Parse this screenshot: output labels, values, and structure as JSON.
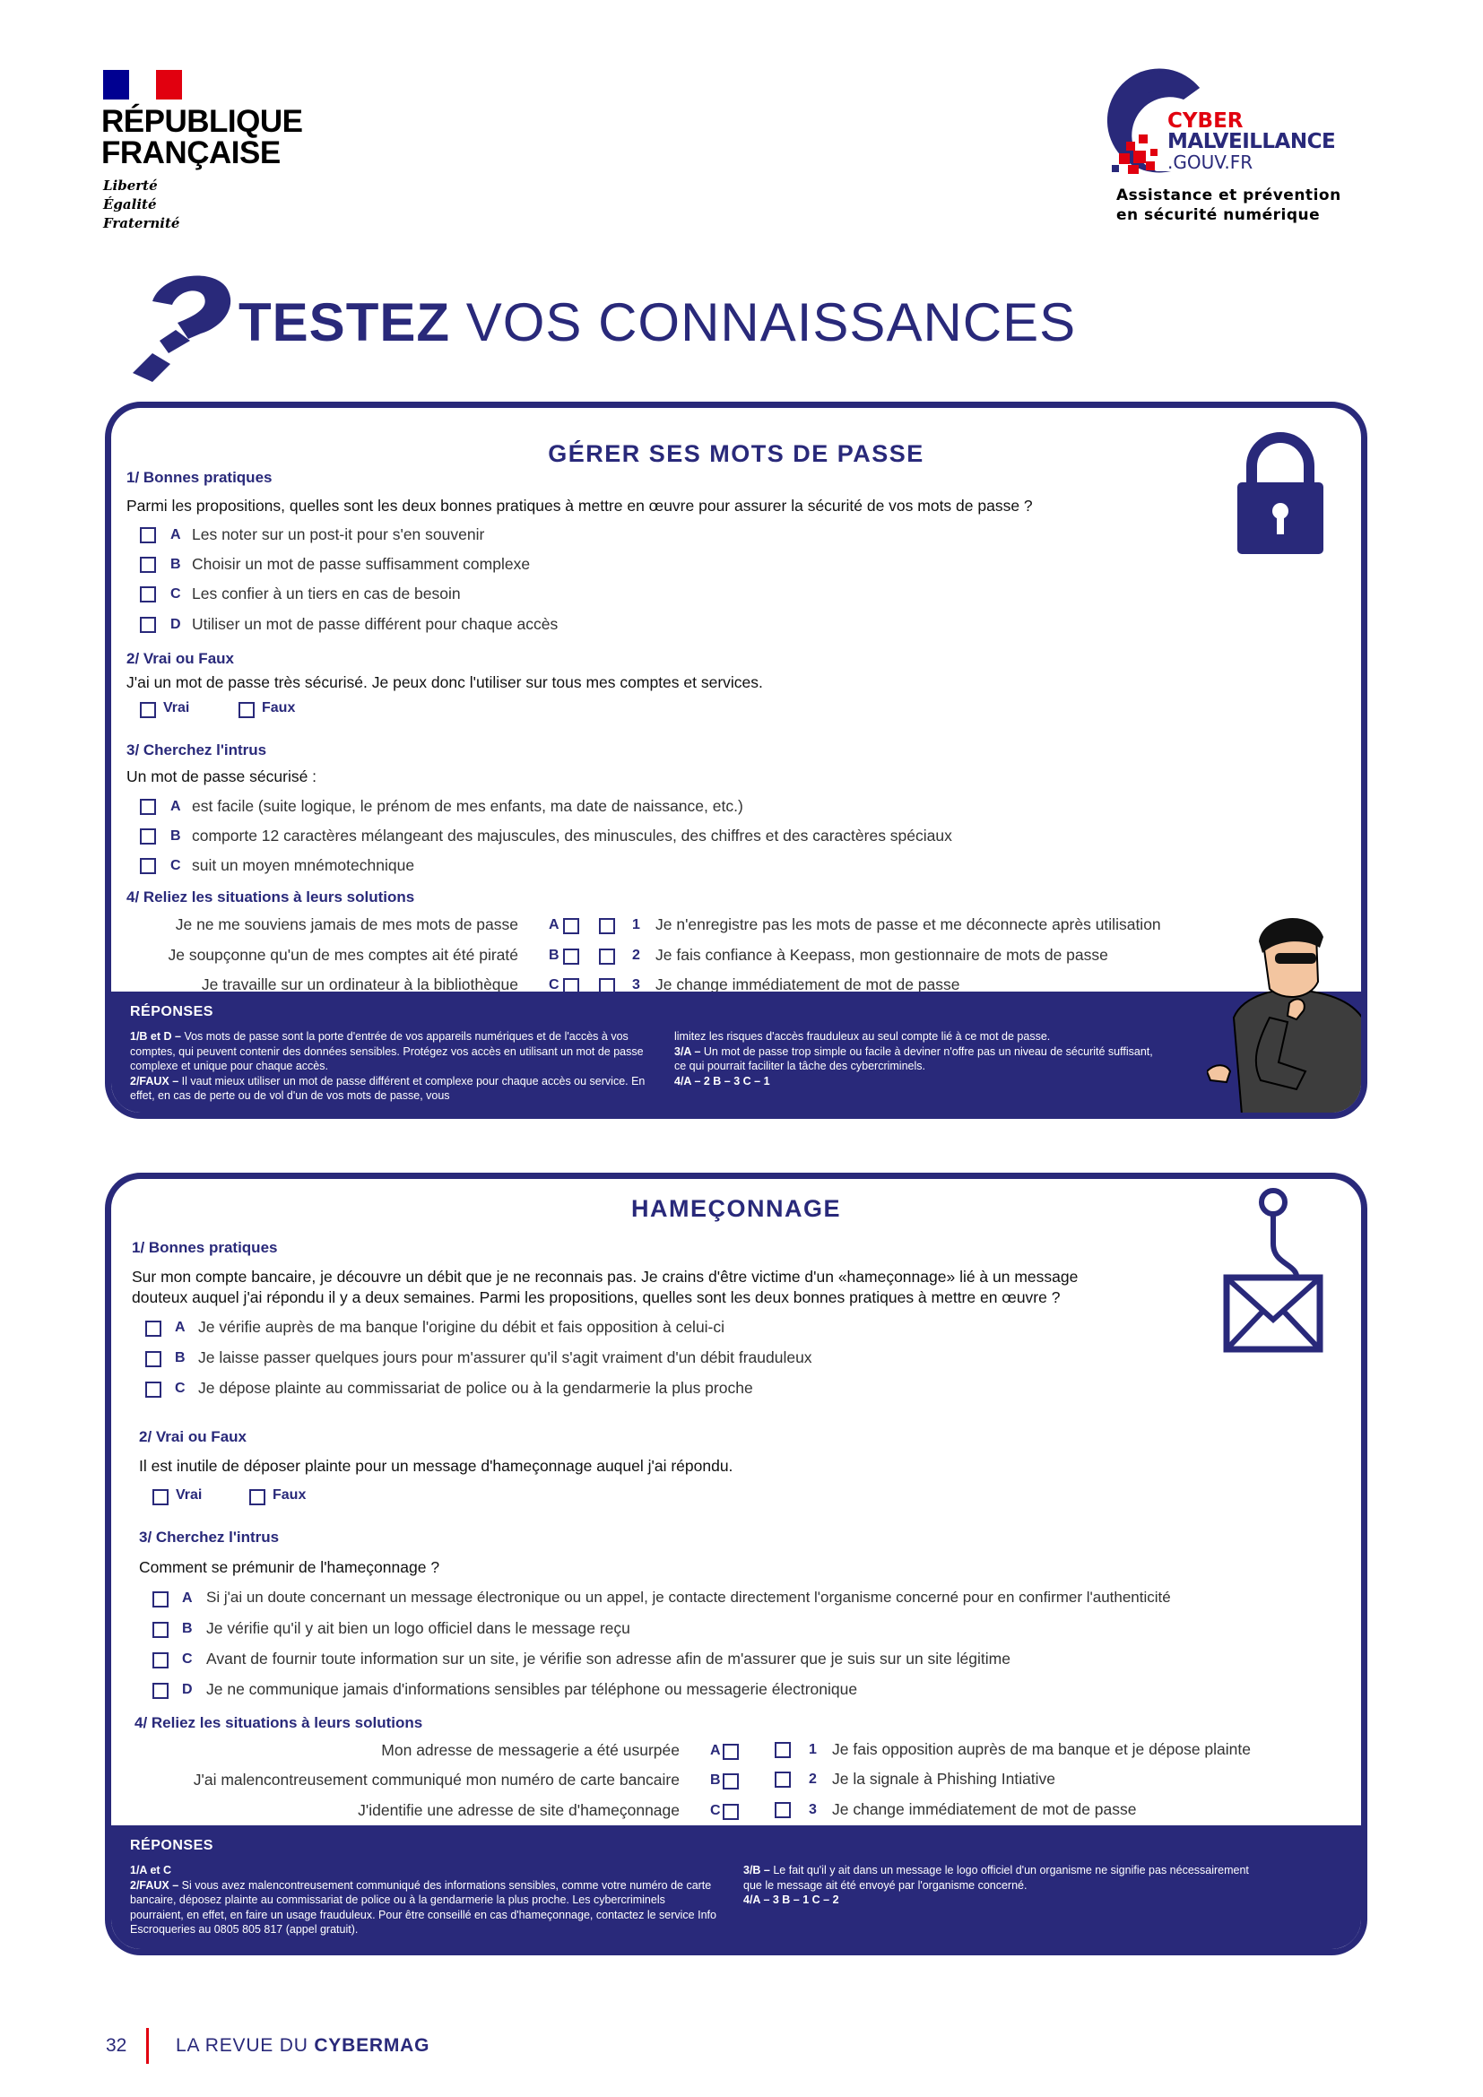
{
  "header": {
    "rf_logo": {
      "line1": "RÉPUBLIQUE",
      "line2": "FRANÇAISE",
      "motto": [
        "Liberté",
        "Égalité",
        "Fraternité"
      ]
    },
    "cyber_logo": {
      "cyber": "CYBER",
      "malveillance": "MALVEILLANCE",
      "domain": ".GOUV.FR",
      "tagline1": "Assistance et prévention",
      "tagline2": "en sécurité numérique"
    }
  },
  "title": {
    "bold": "TESTEZ",
    "rest": "VOS CONNAISSANCES"
  },
  "colors": {
    "navy": "#29297a",
    "red": "#e1000f"
  },
  "section1": {
    "heading": "GÉRER SES MOTS DE PASSE",
    "icon": "padlock-icon",
    "q1": {
      "title": "1/ Bonnes pratiques",
      "question": "Parmi les propositions, quelles sont les deux bonnes pratiques à mettre en œuvre pour assurer la sécurité de vos mots de passe ?",
      "options": [
        {
          "letter": "A",
          "text": "Les noter sur un post-it pour s'en souvenir"
        },
        {
          "letter": "B",
          "text": "Choisir un mot de passe suffisamment complexe"
        },
        {
          "letter": "C",
          "text": "Les confier à un tiers en cas de besoin"
        },
        {
          "letter": "D",
          "text": "Utiliser un mot de passe différent pour chaque accès"
        }
      ]
    },
    "q2": {
      "title": "2/ Vrai ou Faux",
      "statement": "J'ai un mot de passe très sécurisé. Je peux donc l'utiliser sur tous mes comptes et services.",
      "true_label": "Vrai",
      "false_label": "Faux"
    },
    "q3": {
      "title": "3/ Cherchez l'intrus",
      "question": "Un mot de passe sécurisé :",
      "options": [
        {
          "letter": "A",
          "text": "est facile (suite logique, le prénom de mes enfants, ma date de naissance, etc.)"
        },
        {
          "letter": "B",
          "text": "comporte 12 caractères mélangeant des majuscules, des minuscules, des chiffres et des caractères spéciaux"
        },
        {
          "letter": "C",
          "text": "suit un moyen mnémotechnique"
        }
      ]
    },
    "q4": {
      "title": "4/ Reliez les situations à leurs solutions",
      "situations": [
        {
          "letter": "A",
          "text": "Je ne me souviens jamais de mes mots de passe"
        },
        {
          "letter": "B",
          "text": "Je soupçonne qu'un de mes comptes ait été piraté"
        },
        {
          "letter": "C",
          "text": "Je travaille sur un ordinateur à la bibliothèque"
        }
      ],
      "solutions": [
        {
          "number": "1",
          "text": "Je n'enregistre pas les mots de passe et me déconnecte après utilisation"
        },
        {
          "number": "2",
          "text": "Je fais confiance à Keepass, mon gestionnaire de mots de passe"
        },
        {
          "number": "3",
          "text": "Je change immédiatement de mot de passe"
        }
      ]
    },
    "answers": {
      "label": "RÉPONSES",
      "col1": [
        {
          "bold": "1/B et D – ",
          "text": "Vos mots de passe sont la porte d'entrée de vos appareils numériques et de l'accès à vos comptes, qui peuvent contenir des données sensibles. Protégez vos accès en utilisant un mot de passe complexe et unique pour chaque accès."
        },
        {
          "bold": "2/FAUX – ",
          "text": "Il vaut mieux utiliser un mot de passe différent et complexe pour chaque accès ou service. En effet, en cas de perte ou de vol d'un de vos mots de passe, vous"
        }
      ],
      "col2": [
        {
          "bold": "",
          "text": "limitez les risques d'accès frauduleux au seul compte lié à ce mot de passe."
        },
        {
          "bold": "3/A – ",
          "text": "Un mot de passe trop simple ou facile à deviner n'offre pas un niveau de sécurité suffisant, ce qui pourrait faciliter la tâche des cybercriminels."
        },
        {
          "bold": "4/A – 2  B – 3  C – 1",
          "text": ""
        }
      ]
    }
  },
  "section2": {
    "heading": "HAMEÇONNAGE",
    "icon": "fishhook-envelope-icon",
    "q1": {
      "title": "1/ Bonnes pratiques",
      "question1": "Sur mon compte bancaire, je découvre un débit que je ne reconnais pas. Je crains d'être victime d'un «hameçonnage» lié à un message",
      "question2": "douteux auquel j'ai répondu il y a deux semaines. Parmi les propositions, quelles sont les deux bonnes pratiques à mettre en œuvre ?",
      "options": [
        {
          "letter": "A",
          "text": "Je vérifie auprès de ma banque l'origine du débit et fais opposition à celui-ci"
        },
        {
          "letter": "B",
          "text": "Je laisse passer quelques jours pour m'assurer qu'il s'agit vraiment d'un débit frauduleux"
        },
        {
          "letter": "C",
          "text": "Je dépose plainte au commissariat de police ou à la gendarmerie la plus proche"
        }
      ]
    },
    "q2": {
      "title": "2/ Vrai ou Faux",
      "statement": "Il est inutile de déposer plainte pour un message d'hameçonnage auquel j'ai répondu.",
      "true_label": "Vrai",
      "false_label": "Faux"
    },
    "q3": {
      "title": "3/ Cherchez l'intrus",
      "question": "Comment se prémunir de l'hameçonnage ?",
      "options": [
        {
          "letter": "A",
          "text": "Si j'ai un doute concernant un message électronique ou un appel, je contacte directement l'organisme concerné pour en confirmer l'authenticité"
        },
        {
          "letter": "B",
          "text": "Je vérifie qu'il y ait bien un logo officiel dans le message reçu"
        },
        {
          "letter": "C",
          "text": "Avant de fournir toute information sur un site, je vérifie son adresse afin de m'assurer que je suis sur un site légitime"
        },
        {
          "letter": "D",
          "text": "Je ne communique jamais d'informations sensibles par téléphone ou messagerie électronique"
        }
      ]
    },
    "q4": {
      "title": "4/ Reliez les situations à leurs solutions",
      "situations": [
        {
          "letter": "A",
          "text": "Mon adresse de messagerie a été usurpée"
        },
        {
          "letter": "B",
          "text": "J'ai malencontreusement communiqué mon numéro de carte bancaire"
        },
        {
          "letter": "C",
          "text": "J'identifie une adresse de site d'hameçonnage"
        }
      ],
      "solutions": [
        {
          "number": "1",
          "text": "Je fais opposition auprès de ma banque et je dépose plainte"
        },
        {
          "number": "2",
          "text": "Je la signale à Phishing Intiative"
        },
        {
          "number": "3",
          "text": "Je change immédiatement de mot de passe"
        }
      ]
    },
    "answers": {
      "label": "RÉPONSES",
      "col1": [
        {
          "bold": "1/A et C",
          "text": ""
        },
        {
          "bold": "2/FAUX – ",
          "text": "Si vous avez malencontreusement communiqué des informations sensibles, comme votre numéro de carte bancaire, déposez plainte au commissariat de police ou à la gendarmerie la plus proche. Les cybercriminels pourraient, en effet, en faire un usage frauduleux. Pour être conseillé en cas d'hameçonnage, contactez le service Info Escroqueries au 0805 805 817 (appel gratuit)."
        }
      ],
      "col2": [
        {
          "bold": "3/B – ",
          "text": "Le fait qu'il y ait dans un message le logo officiel d'un organisme ne signifie pas nécessairement que le message ait été envoyé par l'organisme concerné."
        },
        {
          "bold": "4/A – 3  B – 1  C – 2",
          "text": ""
        }
      ]
    }
  },
  "footer": {
    "page_number": "32",
    "publication_prefix": "LA REVUE DU ",
    "publication_bold": "CYBERMAG"
  }
}
